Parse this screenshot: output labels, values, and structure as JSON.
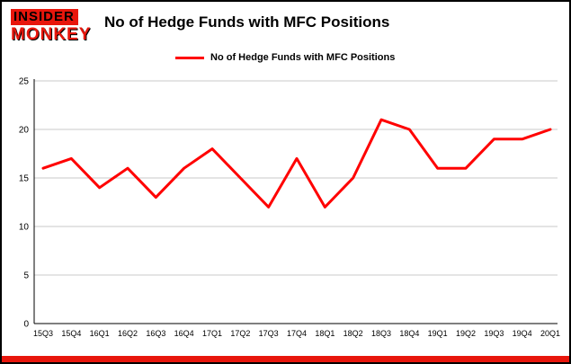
{
  "brand": {
    "line1": "INSIDER",
    "line2": "MONKEY"
  },
  "header": {
    "title": "No of Hedge Funds with MFC Positions"
  },
  "legend": {
    "label": "No of Hedge Funds with MFC Positions"
  },
  "colors": {
    "line": "#ff0000",
    "grid": "#c8c8c8",
    "axis": "#000000",
    "tick_text": "#000000",
    "bottom_bar": "#e8160c",
    "background": "#ffffff"
  },
  "chart_data": {
    "type": "line",
    "title": "No of Hedge Funds with MFC Positions",
    "categories": [
      "15Q3",
      "15Q4",
      "16Q1",
      "16Q2",
      "16Q3",
      "16Q4",
      "17Q1",
      "17Q2",
      "17Q3",
      "17Q4",
      "18Q1",
      "18Q2",
      "18Q3",
      "18Q4",
      "19Q1",
      "19Q2",
      "19Q3",
      "19Q4",
      "20Q1"
    ],
    "series": [
      {
        "name": "No of Hedge Funds with MFC Positions",
        "values": [
          16,
          17,
          14,
          16,
          13,
          16,
          18,
          15,
          12,
          17,
          12,
          15,
          21,
          20,
          16,
          16,
          19,
          19,
          20
        ]
      }
    ],
    "xlabel": "",
    "ylabel": "",
    "ylim": [
      0,
      25
    ],
    "yticks": [
      0,
      5,
      10,
      15,
      20,
      25
    ],
    "grid": true,
    "legend_position": "top-left"
  }
}
